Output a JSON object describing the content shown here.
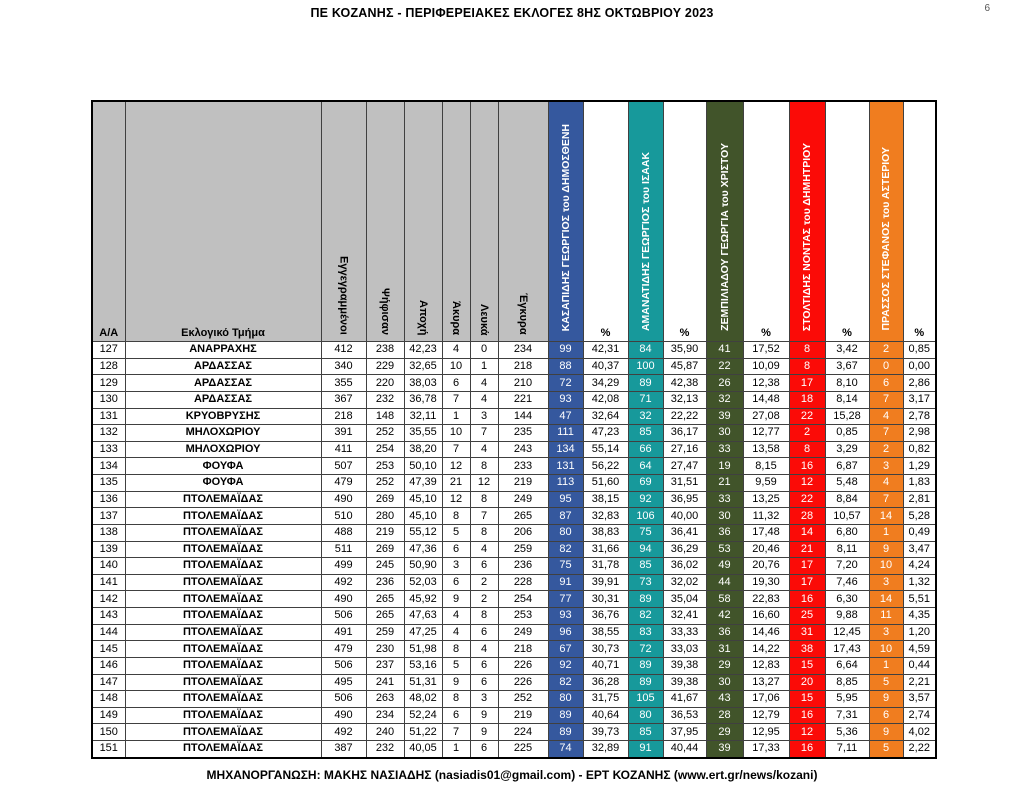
{
  "page": {
    "title": "ΠΕ ΚΟΖΑΝΗΣ - ΠΕΡΙΦΕΡΕΙΑΚΕΣ ΕΚΛΟΓΕΣ 8ΗΣ ΟΚΤΩΒΡΙΟΥ 2023",
    "page_number": "6",
    "footer": "ΜΗΧΑΝΟΡΓΑΝΩΣΗ: ΜΑΚΗΣ ΝΑΣΙΑΔΗΣ (nasiadis01@gmail.com) - ΕΡΤ ΚΟΖΑΝΗΣ (www.ert.gr/news/kozani)"
  },
  "colors": {
    "header_bg": "#C0C0C0",
    "border": "#404040"
  },
  "table": {
    "headers": {
      "aa": "Α/Α",
      "district": "Εκλογικό Τμήμα",
      "stats": [
        "Εγγεγραμμένοι",
        "Ψήφισαν",
        "Αποχή",
        "Άκυρα",
        "Λευκά",
        "Έγκυρα"
      ],
      "percent": "%"
    },
    "candidates": [
      {
        "name": "ΚΑΣΑΠΙΔΗΣ ΓΕΩΡΓΙΟΣ του ΔΗΜΟΣΘΕΝΗ",
        "color": "#35589E"
      },
      {
        "name": "ΑΜΑΝΑΤΙΔΗΣ ΓΕΩΡΓΙΟΣ του ΙΣΑΑΚ",
        "color": "#17999B"
      },
      {
        "name": "ΖΕΜΠΙΛΙΑΔΟΥ ΓΕΩΡΓΙΑ του ΧΡΙΣΤΟΥ",
        "color": "#41542A"
      },
      {
        "name": "ΣΤΟΛΤΙΔΗΣ ΝΟΝΤΑΣ του ΔΗΜΗΤΡΙΟΥ",
        "color": "#FB0B07"
      },
      {
        "name": "ΠΡΑΣΣΟΣ ΣΤΕΦΑΝΟΣ του ΑΣΤΕΡΙΟΥ",
        "color": "#F07D1F"
      }
    ],
    "rows": [
      [
        "127",
        "ΑΝΑΡΡΑΧΗΣ",
        "412",
        "238",
        "42,23",
        "4",
        "0",
        "234",
        "99",
        "42,31",
        "84",
        "35,90",
        "41",
        "17,52",
        "8",
        "3,42",
        "2",
        "0,85"
      ],
      [
        "128",
        "ΑΡΔΑΣΣΑΣ",
        "340",
        "229",
        "32,65",
        "10",
        "1",
        "218",
        "88",
        "40,37",
        "100",
        "45,87",
        "22",
        "10,09",
        "8",
        "3,67",
        "0",
        "0,00"
      ],
      [
        "129",
        "ΑΡΔΑΣΣΑΣ",
        "355",
        "220",
        "38,03",
        "6",
        "4",
        "210",
        "72",
        "34,29",
        "89",
        "42,38",
        "26",
        "12,38",
        "17",
        "8,10",
        "6",
        "2,86"
      ],
      [
        "130",
        "ΑΡΔΑΣΣΑΣ",
        "367",
        "232",
        "36,78",
        "7",
        "4",
        "221",
        "93",
        "42,08",
        "71",
        "32,13",
        "32",
        "14,48",
        "18",
        "8,14",
        "7",
        "3,17"
      ],
      [
        "131",
        "ΚΡΥΟΒΡΥΣΗΣ",
        "218",
        "148",
        "32,11",
        "1",
        "3",
        "144",
        "47",
        "32,64",
        "32",
        "22,22",
        "39",
        "27,08",
        "22",
        "15,28",
        "4",
        "2,78"
      ],
      [
        "132",
        "ΜΗΛΟΧΩΡΙΟΥ",
        "391",
        "252",
        "35,55",
        "10",
        "7",
        "235",
        "111",
        "47,23",
        "85",
        "36,17",
        "30",
        "12,77",
        "2",
        "0,85",
        "7",
        "2,98"
      ],
      [
        "133",
        "ΜΗΛΟΧΩΡΙΟΥ",
        "411",
        "254",
        "38,20",
        "7",
        "4",
        "243",
        "134",
        "55,14",
        "66",
        "27,16",
        "33",
        "13,58",
        "8",
        "3,29",
        "2",
        "0,82"
      ],
      [
        "134",
        "ΦΟΥΦΑ",
        "507",
        "253",
        "50,10",
        "12",
        "8",
        "233",
        "131",
        "56,22",
        "64",
        "27,47",
        "19",
        "8,15",
        "16",
        "6,87",
        "3",
        "1,29"
      ],
      [
        "135",
        "ΦΟΥΦΑ",
        "479",
        "252",
        "47,39",
        "21",
        "12",
        "219",
        "113",
        "51,60",
        "69",
        "31,51",
        "21",
        "9,59",
        "12",
        "5,48",
        "4",
        "1,83"
      ],
      [
        "136",
        "ΠΤΟΛΕΜΑΪΔΑΣ",
        "490",
        "269",
        "45,10",
        "12",
        "8",
        "249",
        "95",
        "38,15",
        "92",
        "36,95",
        "33",
        "13,25",
        "22",
        "8,84",
        "7",
        "2,81"
      ],
      [
        "137",
        "ΠΤΟΛΕΜΑΪΔΑΣ",
        "510",
        "280",
        "45,10",
        "8",
        "7",
        "265",
        "87",
        "32,83",
        "106",
        "40,00",
        "30",
        "11,32",
        "28",
        "10,57",
        "14",
        "5,28"
      ],
      [
        "138",
        "ΠΤΟΛΕΜΑΪΔΑΣ",
        "488",
        "219",
        "55,12",
        "5",
        "8",
        "206",
        "80",
        "38,83",
        "75",
        "36,41",
        "36",
        "17,48",
        "14",
        "6,80",
        "1",
        "0,49"
      ],
      [
        "139",
        "ΠΤΟΛΕΜΑΪΔΑΣ",
        "511",
        "269",
        "47,36",
        "6",
        "4",
        "259",
        "82",
        "31,66",
        "94",
        "36,29",
        "53",
        "20,46",
        "21",
        "8,11",
        "9",
        "3,47"
      ],
      [
        "140",
        "ΠΤΟΛΕΜΑΪΔΑΣ",
        "499",
        "245",
        "50,90",
        "3",
        "6",
        "236",
        "75",
        "31,78",
        "85",
        "36,02",
        "49",
        "20,76",
        "17",
        "7,20",
        "10",
        "4,24"
      ],
      [
        "141",
        "ΠΤΟΛΕΜΑΪΔΑΣ",
        "492",
        "236",
        "52,03",
        "6",
        "2",
        "228",
        "91",
        "39,91",
        "73",
        "32,02",
        "44",
        "19,30",
        "17",
        "7,46",
        "3",
        "1,32"
      ],
      [
        "142",
        "ΠΤΟΛΕΜΑΪΔΑΣ",
        "490",
        "265",
        "45,92",
        "9",
        "2",
        "254",
        "77",
        "30,31",
        "89",
        "35,04",
        "58",
        "22,83",
        "16",
        "6,30",
        "14",
        "5,51"
      ],
      [
        "143",
        "ΠΤΟΛΕΜΑΪΔΑΣ",
        "506",
        "265",
        "47,63",
        "4",
        "8",
        "253",
        "93",
        "36,76",
        "82",
        "32,41",
        "42",
        "16,60",
        "25",
        "9,88",
        "11",
        "4,35"
      ],
      [
        "144",
        "ΠΤΟΛΕΜΑΪΔΑΣ",
        "491",
        "259",
        "47,25",
        "4",
        "6",
        "249",
        "96",
        "38,55",
        "83",
        "33,33",
        "36",
        "14,46",
        "31",
        "12,45",
        "3",
        "1,20"
      ],
      [
        "145",
        "ΠΤΟΛΕΜΑΪΔΑΣ",
        "479",
        "230",
        "51,98",
        "8",
        "4",
        "218",
        "67",
        "30,73",
        "72",
        "33,03",
        "31",
        "14,22",
        "38",
        "17,43",
        "10",
        "4,59"
      ],
      [
        "146",
        "ΠΤΟΛΕΜΑΪΔΑΣ",
        "506",
        "237",
        "53,16",
        "5",
        "6",
        "226",
        "92",
        "40,71",
        "89",
        "39,38",
        "29",
        "12,83",
        "15",
        "6,64",
        "1",
        "0,44"
      ],
      [
        "147",
        "ΠΤΟΛΕΜΑΪΔΑΣ",
        "495",
        "241",
        "51,31",
        "9",
        "6",
        "226",
        "82",
        "36,28",
        "89",
        "39,38",
        "30",
        "13,27",
        "20",
        "8,85",
        "5",
        "2,21"
      ],
      [
        "148",
        "ΠΤΟΛΕΜΑΪΔΑΣ",
        "506",
        "263",
        "48,02",
        "8",
        "3",
        "252",
        "80",
        "31,75",
        "105",
        "41,67",
        "43",
        "17,06",
        "15",
        "5,95",
        "9",
        "3,57"
      ],
      [
        "149",
        "ΠΤΟΛΕΜΑΪΔΑΣ",
        "490",
        "234",
        "52,24",
        "6",
        "9",
        "219",
        "89",
        "40,64",
        "80",
        "36,53",
        "28",
        "12,79",
        "16",
        "7,31",
        "6",
        "2,74"
      ],
      [
        "150",
        "ΠΤΟΛΕΜΑΪΔΑΣ",
        "492",
        "240",
        "51,22",
        "7",
        "9",
        "224",
        "89",
        "39,73",
        "85",
        "37,95",
        "29",
        "12,95",
        "12",
        "5,36",
        "9",
        "4,02"
      ],
      [
        "151",
        "ΠΤΟΛΕΜΑΪΔΑΣ",
        "387",
        "232",
        "40,05",
        "1",
        "6",
        "225",
        "74",
        "32,89",
        "91",
        "40,44",
        "39",
        "17,33",
        "16",
        "7,11",
        "5",
        "2,22"
      ]
    ]
  }
}
